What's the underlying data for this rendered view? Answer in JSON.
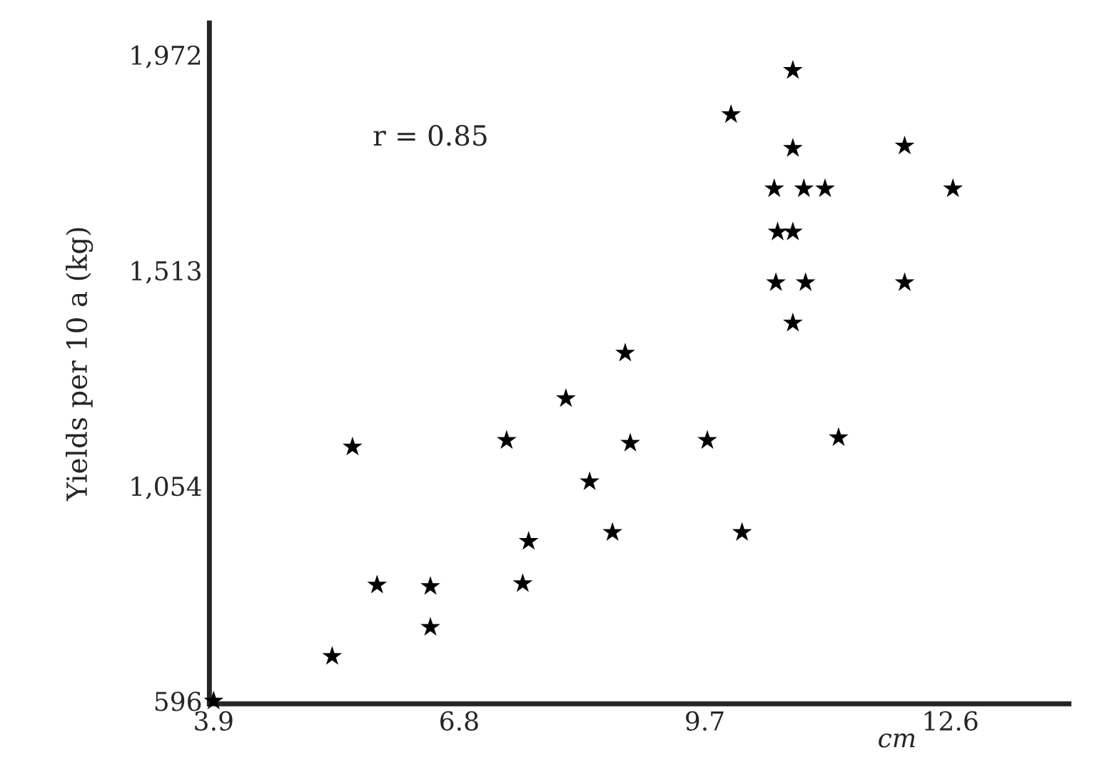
{
  "chart_data": {
    "type": "scatter",
    "xlabel": "cm",
    "ylabel": "Yields per 10 a (kg)",
    "annotations": [
      "r = 0.85"
    ],
    "marker": "star",
    "grid": false,
    "x": [
      3.9,
      5.3,
      5.54,
      5.83,
      6.46,
      6.46,
      7.62,
      7.55,
      7.36,
      8.06,
      8.34,
      8.61,
      8.82,
      8.76,
      9.73,
      10.14,
      11.28,
      10.74,
      10.01,
      10.74,
      12.06,
      10.52,
      10.87,
      11.12,
      12.63,
      10.56,
      10.74,
      10.54,
      10.89,
      12.06,
      10.74
    ],
    "series": [
      {
        "color": "#000000",
        "values": [
          596,
          691,
          1137,
          843,
          840,
          753,
          936,
          846,
          1151,
          1240,
          1063,
          955,
          1145,
          1337,
          1151,
          955,
          1157,
          1939,
          1845,
          1773,
          1778,
          1687,
          1687,
          1687,
          1687,
          1595,
          1595,
          1487,
          1487,
          1487,
          1401
        ]
      }
    ],
    "xlim": [
      3.85,
      14.0
    ],
    "ylim": [
      590,
      2040
    ],
    "xticks": [
      3.9,
      6.8,
      9.7,
      12.6
    ],
    "yticks": [
      {
        "value": 596,
        "label": "596"
      },
      {
        "value": 1054,
        "label": "1,054"
      },
      {
        "value": 1513,
        "label": "1,513"
      },
      {
        "value": 1972,
        "label": "1,972"
      }
    ]
  }
}
